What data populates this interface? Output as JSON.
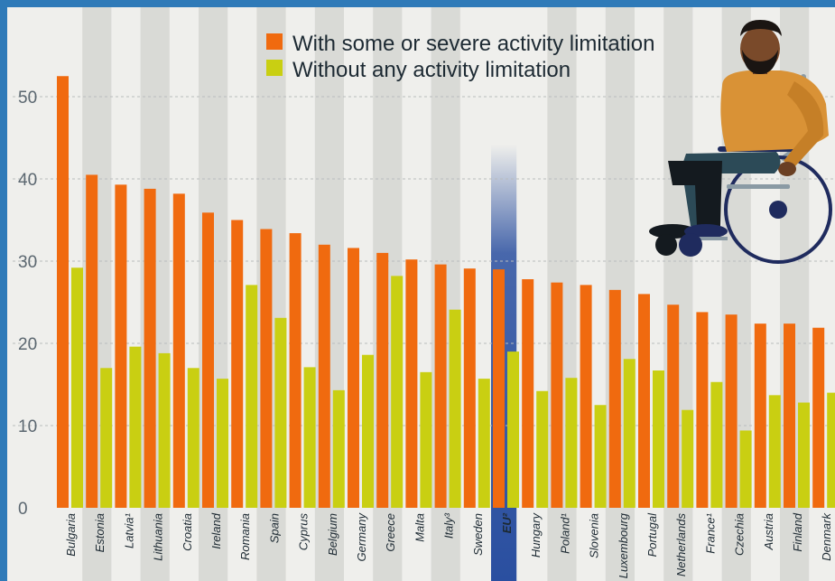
{
  "chart_data": {
    "type": "bar",
    "categories": [
      "Bulgaria",
      "Estonia",
      "Latvia¹",
      "Lithuania",
      "Croatia",
      "Ireland",
      "Romania",
      "Spain",
      "Cyprus",
      "Belgium",
      "Germany",
      "Greece",
      "Malta",
      "Italy³",
      "Sweden",
      "EU²",
      "Hungary",
      "Poland¹",
      "Slovenia",
      "Luxembourg",
      "Portugal",
      "Netherlands",
      "France¹",
      "Czechia",
      "Austria",
      "Finland",
      "Denmark"
    ],
    "series": [
      {
        "name": "With some or severe activity limitation",
        "color": "#f06a0f",
        "values": [
          52.5,
          40.5,
          39.3,
          38.8,
          38.2,
          35.9,
          35.0,
          33.9,
          33.4,
          32.0,
          31.6,
          31.0,
          30.2,
          29.6,
          29.1,
          29.0,
          27.8,
          27.4,
          27.1,
          26.5,
          26.0,
          24.7,
          23.8,
          23.5,
          22.4,
          22.4,
          21.9
        ]
      },
      {
        "name": "Without any activity limitation",
        "color": "#c9cf12",
        "values": [
          29.2,
          17.0,
          19.6,
          18.8,
          17.0,
          15.7,
          27.1,
          23.1,
          17.1,
          14.3,
          18.6,
          28.2,
          16.5,
          24.1,
          15.7,
          19.0,
          14.2,
          15.8,
          12.5,
          18.1,
          16.7,
          11.9,
          15.3,
          9.4,
          13.7,
          12.8,
          14.0
        ]
      }
    ],
    "yticks": [
      0,
      10,
      20,
      30,
      40,
      50
    ],
    "ylim": [
      0,
      57
    ],
    "grid": true,
    "legend_position": "top-right",
    "highlight_category": "EU²",
    "colors": {
      "frame": "#2f7ab8",
      "background": "#efefec",
      "stripe": "#d9dad6",
      "gridline": "#b9bcbd",
      "highlight": "#2a4fa0"
    }
  },
  "illustration": {
    "icon": "person-in-wheelchair-icon"
  }
}
